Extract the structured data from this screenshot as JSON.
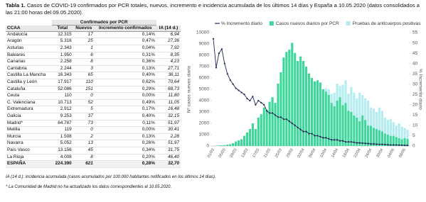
{
  "header": {
    "label": "Tabla 1.",
    "title": "Casos de COVID-19 confirmados por PCR totales, nuevos, incremento e incidencia acumulada de los últimos 14 días y España a 10.05.2020 (datos consolidados a las 21:00 horas del 09.05.2020)."
  },
  "table": {
    "group_header": "Confirmados por PCR",
    "columns": [
      "CCAA",
      "Total",
      "Nuevos",
      "Incremento confirmados",
      "IA (14 d.)"
    ],
    "rows": [
      [
        "Andalucía",
        "12.315",
        "17",
        "0,14%",
        "6,94"
      ],
      [
        "Aragón",
        "5.316",
        "25",
        "0,47%",
        "27,36"
      ],
      [
        "Asturias",
        "2.343",
        "1",
        "0,04%",
        "7,92"
      ],
      [
        "Baleares",
        "1.950",
        "6",
        "0,31%",
        "8,35"
      ],
      [
        "Canarias",
        "2.258",
        "8",
        "0,36%",
        "4,23"
      ],
      [
        "Cantabria",
        "2.244",
        "3",
        "0,13%",
        "27,71"
      ],
      [
        "Castilla La Mancha",
        "16.343",
        "65",
        "0,40%",
        "36,11"
      ],
      [
        "Castilla y León",
        "17.917",
        "110",
        "0,62%",
        "70,64"
      ],
      [
        "Cataluña",
        "52.086",
        "151",
        "0,29%",
        "68,73"
      ],
      [
        "Ceuta",
        "110",
        "0",
        "0,00%",
        "11,80"
      ],
      [
        "C. Valenciana",
        "10.713",
        "52",
        "0,49%",
        "11,05"
      ],
      [
        "Extremadura",
        "2.912",
        "5",
        "0,17%",
        "16,48"
      ],
      [
        "Galicia",
        "9.253",
        "37",
        "0,40%",
        "32,15"
      ],
      [
        "Madrid*",
        "64.787",
        "73",
        "0,11%",
        "51,97"
      ],
      [
        "Melilla",
        "119",
        "0",
        "0,00%",
        "30,41"
      ],
      [
        "Murcia",
        "1.508",
        "2",
        "0,13%",
        "2,28"
      ],
      [
        "Navarra",
        "5.052",
        "13",
        "0,26%",
        "51,97"
      ],
      [
        "País Vasco",
        "13.156",
        "45",
        "0,34%",
        "31,75"
      ],
      [
        "La Rioja",
        "4.008",
        "8",
        "0,20%",
        "46,40"
      ],
      [
        "ESPAÑA",
        "224.390",
        "621",
        "0,28%",
        "32,70"
      ]
    ]
  },
  "notes": [
    "IA (14 d.): incidencia acumulada (casos acumulados por 100.000 habitantes notificados en los últimos 14 días).",
    "* La Comunidad de Madrid no ha actualizado los datos correspondientes al 10.05.2020."
  ],
  "chart_data": {
    "type": "bar",
    "stacked": true,
    "legend": "top",
    "y_label": "Nº casos nuevos diario",
    "y2_label": "% Incremento diario",
    "categories": [
      "01/03",
      null,
      null,
      null,
      "05/03",
      null,
      null,
      null,
      "09/03",
      null,
      null,
      null,
      "13/03",
      null,
      null,
      null,
      "17/03",
      null,
      null,
      null,
      "21/03",
      null,
      null,
      null,
      "25/03",
      null,
      null,
      null,
      "29/03",
      null,
      null,
      null,
      "02/04",
      null,
      null,
      null,
      "06/04",
      null,
      null,
      null,
      "10/04",
      null,
      null,
      null,
      "14/04",
      null,
      null,
      null,
      "18/04",
      null,
      null,
      null,
      "22/04",
      null,
      null,
      null,
      "26/04",
      null,
      null,
      null,
      "30/04",
      null,
      null,
      null,
      "04/05",
      null,
      null,
      null,
      "08/05",
      null
    ],
    "ylim": [
      0,
      10000
    ],
    "yticks": [
      0,
      1000,
      2000,
      3000,
      4000,
      5000,
      6000,
      7000,
      8000,
      9000,
      10000
    ],
    "y2lim": [
      0,
      55
    ],
    "y2ticks": [
      0,
      5,
      10,
      15,
      20,
      25,
      30,
      35,
      40,
      45,
      50,
      55
    ],
    "series": [
      {
        "name": "% Incremento diario",
        "type": "line",
        "axis": "y2",
        "color": "#1f2a52",
        "values": [
          52,
          38,
          45,
          47,
          40,
          35,
          32,
          30,
          28,
          27,
          26,
          25,
          23,
          22,
          24,
          20,
          22,
          21,
          20,
          17,
          16,
          16,
          15,
          14,
          14,
          13,
          13,
          12,
          11,
          10,
          9,
          8,
          7,
          7,
          6,
          6,
          5,
          5,
          4.5,
          4,
          4,
          3.5,
          3,
          3,
          3,
          2.5,
          2.5,
          2,
          2,
          2,
          1.8,
          1.5,
          1.5,
          1.4,
          1.3,
          1.2,
          1,
          1,
          0.9,
          0.8,
          0.8,
          0.7,
          0.6,
          0.5,
          0.5,
          0.5,
          0.4,
          0.4,
          0.3,
          0.3
        ]
      },
      {
        "name": "Casos nuevos diarios por PCR",
        "type": "bar",
        "color": "#3ed69b",
        "values": [
          20,
          30,
          50,
          60,
          80,
          120,
          150,
          250,
          400,
          500,
          600,
          900,
          1200,
          1500,
          2000,
          1500,
          2500,
          2800,
          3400,
          3200,
          3900,
          4300,
          3800,
          5500,
          6500,
          7800,
          8300,
          8500,
          9100,
          8200,
          7500,
          7900,
          7500,
          7000,
          6400,
          6000,
          5700,
          5800,
          5600,
          5000,
          4800,
          4500,
          3800,
          3500,
          4000,
          4300,
          3600,
          3800,
          3100,
          3000,
          2700,
          2500,
          2200,
          2700,
          2300,
          1800,
          1800,
          1600,
          1500,
          1400,
          1300,
          1100,
          1000,
          900,
          900,
          800,
          700,
          600,
          700,
          621
        ]
      },
      {
        "name": "Pruebas de anticuerpos positivas",
        "type": "bar",
        "color": "#b5ecef",
        "values": [
          0,
          0,
          0,
          0,
          0,
          0,
          0,
          0,
          0,
          0,
          0,
          0,
          0,
          0,
          0,
          0,
          0,
          0,
          0,
          0,
          0,
          0,
          0,
          0,
          0,
          0,
          0,
          0,
          0,
          0,
          0,
          0,
          0,
          0,
          0,
          0,
          0,
          0,
          0,
          0,
          300,
          500,
          800,
          1200,
          1500,
          1000,
          1800,
          2000,
          1500,
          2200,
          2000,
          1700,
          2500,
          1800,
          1900,
          2200,
          1600,
          1700,
          1500,
          2000,
          1800,
          1400,
          1300,
          1500,
          1200,
          1000,
          1300,
          1100,
          900,
          800
        ]
      }
    ]
  }
}
